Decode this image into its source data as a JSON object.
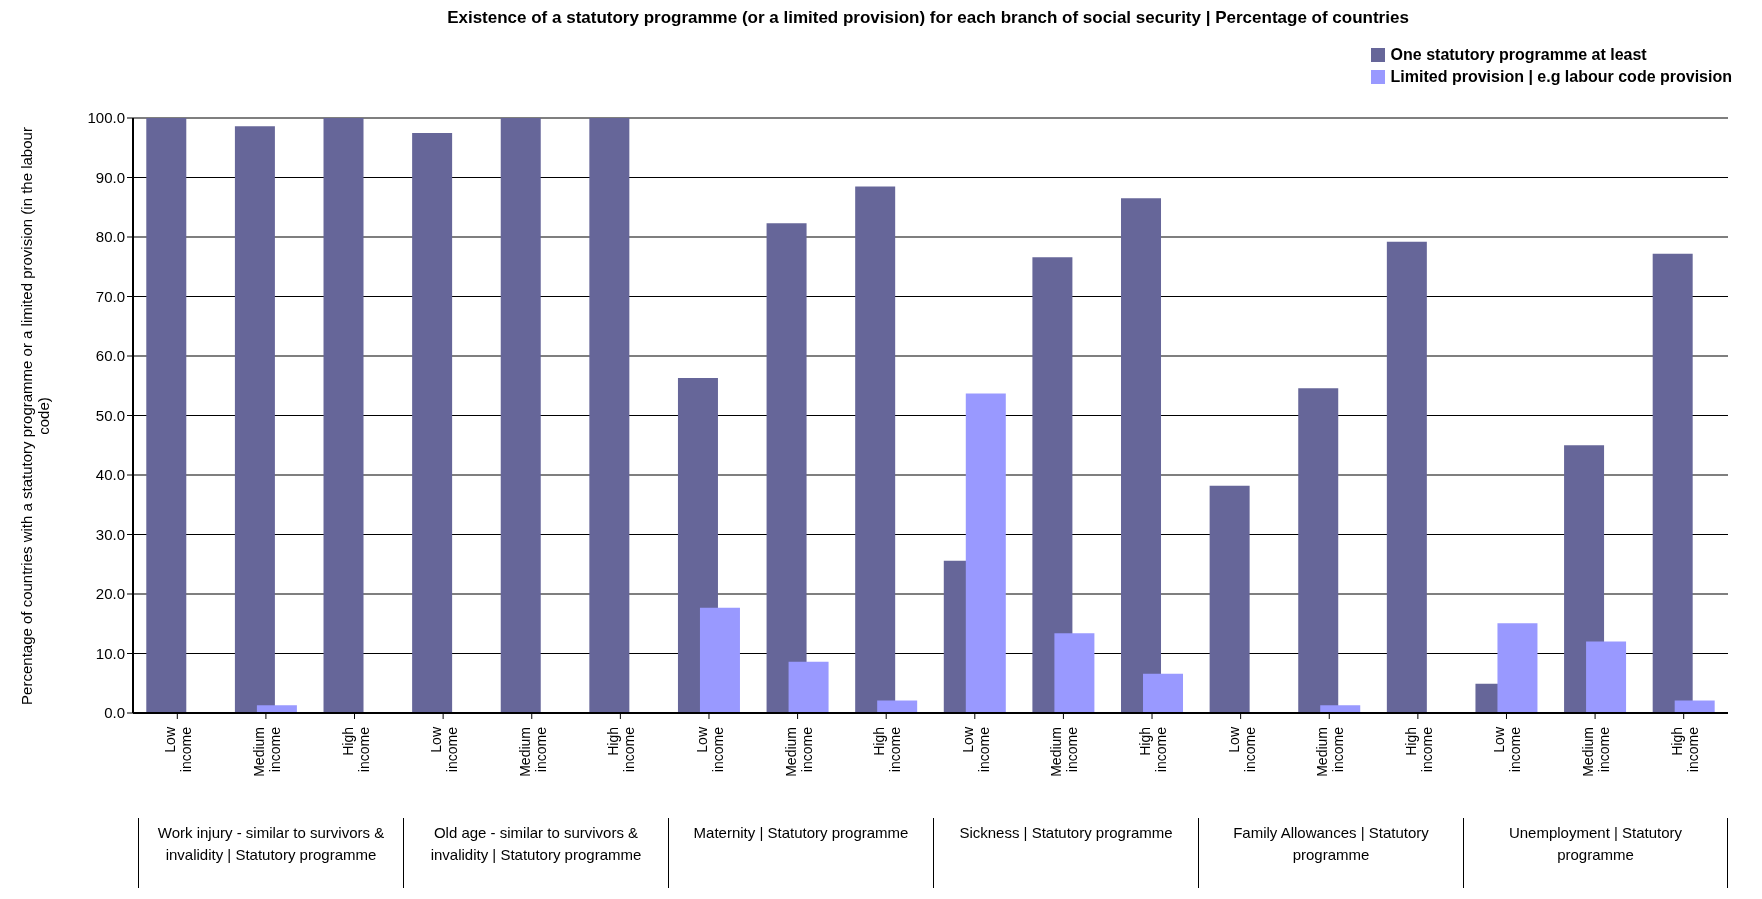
{
  "chart_data": {
    "type": "bar",
    "title": "Existence of a statutory programme (or a limited provision) for each branch of social security | Percentage of countries",
    "ylabel": "Percentage of countries with a statutory programme or a limited provision (in the labour code)",
    "categories": [
      "Low income",
      "Medium income",
      "High income",
      "Low income",
      "Medium income",
      "High income",
      "Low income",
      "Medium income",
      "High income",
      "Low income",
      "Medium income",
      "High income",
      "Low income",
      "Medium income",
      "High income",
      "Low income",
      "Medium income",
      "High income"
    ],
    "series": [
      {
        "name": "One statutory programme at least",
        "color": "#666699",
        "values": [
          100,
          98.6,
          100,
          97.5,
          100,
          100,
          56.3,
          82.3,
          88.5,
          25.6,
          76.6,
          86.5,
          38.2,
          54.6,
          79.2,
          4.9,
          45.0,
          77.2
        ]
      },
      {
        "name": "Limited provision | e.g labour code provision",
        "color": "#9999ff",
        "values": [
          0,
          1.3,
          0,
          0,
          0,
          0,
          17.7,
          8.6,
          2.1,
          53.7,
          13.4,
          6.6,
          0,
          1.3,
          0,
          15.1,
          12.0,
          2.1
        ]
      }
    ],
    "annotations": [
      "Work  injury - similar to survivors & invalidity | Statutory programme",
      "Old age - similar to survivors & invalidity | Statutory programme",
      "Maternity | Statutory programme",
      "Sickness | Statutory programme",
      "Family Allowances | Statutory programme",
      "Unemployment | Statutory programme"
    ],
    "ylim": [
      0,
      100
    ],
    "yticks": [
      {
        "value": 0,
        "label": "0.0"
      },
      {
        "value": 10,
        "label": "10.0"
      },
      {
        "value": 20,
        "label": "20.0"
      },
      {
        "value": 30,
        "label": "30.0"
      },
      {
        "value": 40,
        "label": "40.0"
      },
      {
        "value": 50,
        "label": "50.0"
      },
      {
        "value": 60,
        "label": "60.0"
      },
      {
        "value": 70,
        "label": "70.0"
      },
      {
        "value": 80,
        "label": "80.0"
      },
      {
        "value": 90,
        "label": "90.0"
      },
      {
        "value": 100,
        "label": "100.0"
      }
    ],
    "grid": "y",
    "legend": "top right"
  }
}
